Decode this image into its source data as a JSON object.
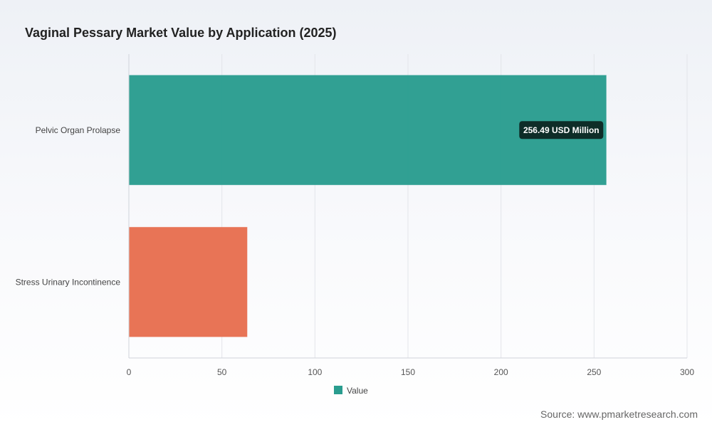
{
  "chart_data": {
    "type": "bar",
    "orientation": "horizontal",
    "title": "Vaginal Pessary Market Value by Application (2025)",
    "categories": [
      "Pelvic Organ Prolapse",
      "Stress Urinary Incontinence"
    ],
    "series": [
      {
        "name": "Value",
        "values": [
          256.49,
          63.5
        ],
        "colors": [
          "#2a9d8f",
          "#e76f51"
        ]
      }
    ],
    "xlim": [
      0,
      300
    ],
    "xticks": [
      0,
      50,
      100,
      150,
      200,
      250,
      300
    ],
    "grid": true,
    "legend_position": "bottom",
    "data_labels": [
      {
        "category": "Pelvic Organ Prolapse",
        "text": "256.49 USD Million"
      }
    ]
  },
  "source": "Source: www.pmarketresearch.com"
}
